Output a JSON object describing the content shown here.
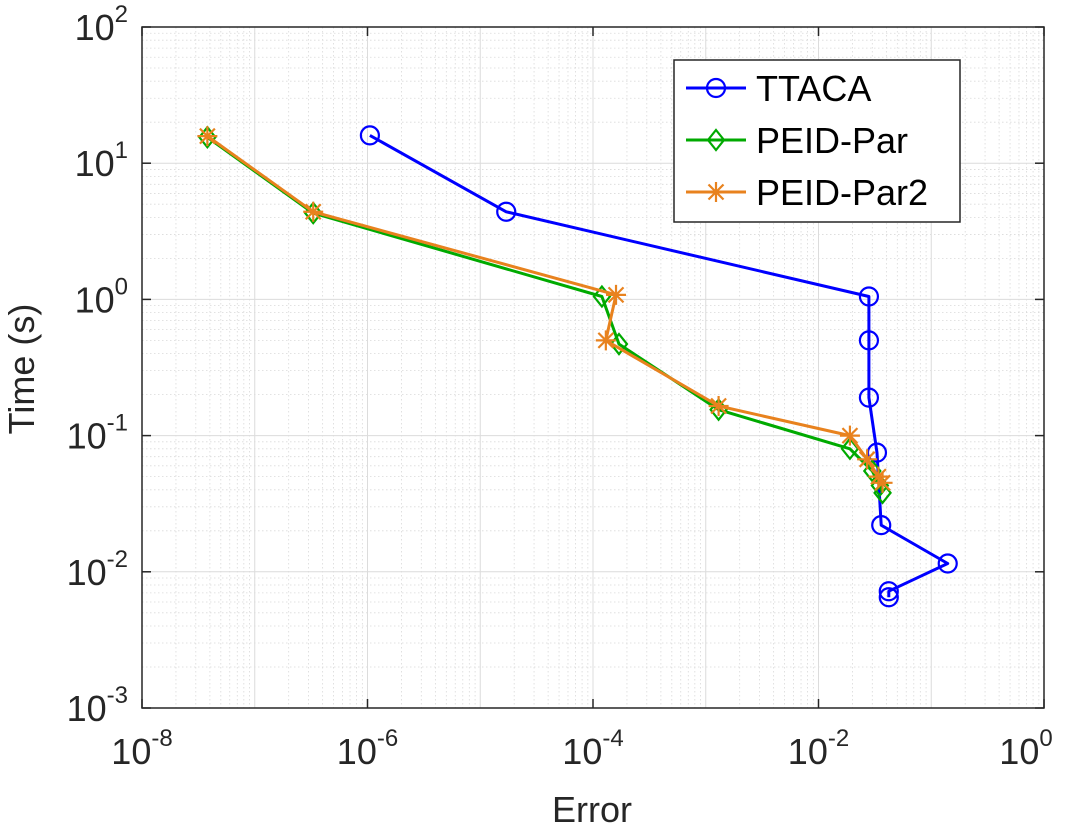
{
  "chart_data": {
    "type": "line",
    "xscale": "log",
    "yscale": "log",
    "xlim": [
      1e-08,
      1
    ],
    "ylim": [
      0.001,
      100
    ],
    "xlabel": "Error",
    "ylabel": "Time (s)",
    "grid": true,
    "minor_grid": true,
    "legend_position": "top-right",
    "x_ticks": [
      {
        "value": 1e-08,
        "base": "10",
        "exp": "-8"
      },
      {
        "value": 1e-06,
        "base": "10",
        "exp": "-6"
      },
      {
        "value": 0.0001,
        "base": "10",
        "exp": "-4"
      },
      {
        "value": 0.01,
        "base": "10",
        "exp": "-2"
      },
      {
        "value": 1,
        "base": "10",
        "exp": "0"
      }
    ],
    "y_ticks": [
      {
        "value": 0.001,
        "base": "10",
        "exp": "-3"
      },
      {
        "value": 0.01,
        "base": "10",
        "exp": "-2"
      },
      {
        "value": 0.1,
        "base": "10",
        "exp": "-1"
      },
      {
        "value": 1,
        "base": "10",
        "exp": "0"
      },
      {
        "value": 10,
        "base": "10",
        "exp": "1"
      },
      {
        "value": 100,
        "base": "10",
        "exp": "2"
      }
    ],
    "series": [
      {
        "name": "TTACA",
        "color": "#0000ff",
        "marker": "circle",
        "x": [
          1.05e-06,
          1.7e-05,
          0.028,
          0.028,
          0.028,
          0.033,
          0.036,
          0.14,
          0.042,
          0.042
        ],
        "y": [
          16,
          4.4,
          1.05,
          0.5,
          0.19,
          0.075,
          0.022,
          0.0115,
          0.0072,
          0.0065
        ]
      },
      {
        "name": "PEID-Par",
        "color": "#00aa00",
        "marker": "diamond",
        "x": [
          3.8e-08,
          3.3e-07,
          0.00012,
          0.00017,
          0.0013,
          0.019,
          0.03,
          0.035,
          0.037
        ],
        "y": [
          15.5,
          4.3,
          1.05,
          0.47,
          0.155,
          0.08,
          0.055,
          0.043,
          0.038
        ]
      },
      {
        "name": "PEID-Par2",
        "color": "#e8821e",
        "marker": "asterisk",
        "x": [
          3.8e-08,
          3.3e-07,
          0.00016,
          0.00013,
          0.0013,
          0.019,
          0.027,
          0.034,
          0.037
        ],
        "y": [
          15.8,
          4.4,
          1.08,
          0.5,
          0.165,
          0.1,
          0.067,
          0.05,
          0.045
        ]
      }
    ]
  }
}
